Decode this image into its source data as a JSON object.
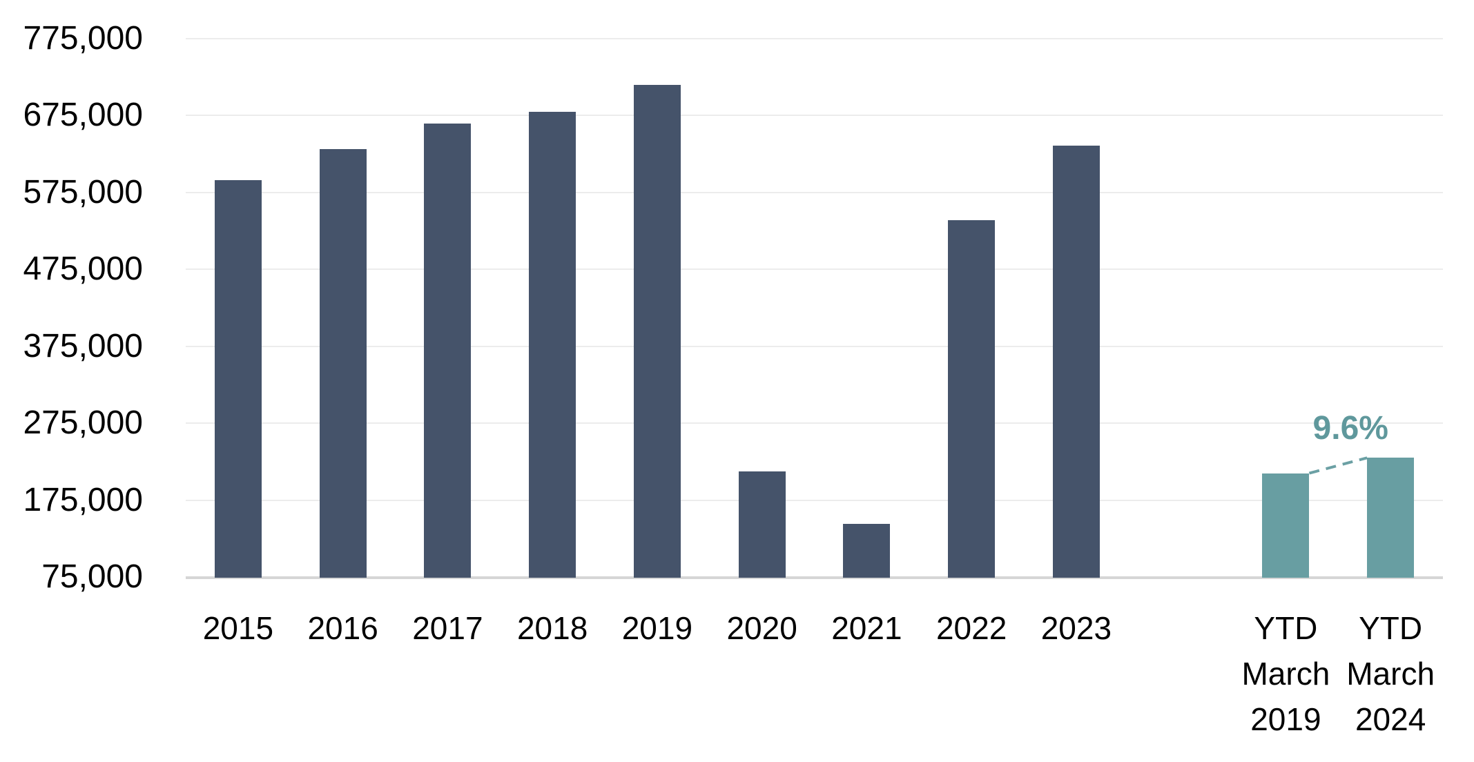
{
  "chart_data": {
    "type": "bar",
    "title": "",
    "xlabel": "",
    "ylabel": "",
    "categories": [
      "2015",
      "2016",
      "2017",
      "2018",
      "2019",
      "2020",
      "2021",
      "2022",
      "2023",
      "YTD March 2019",
      "YTD March 2024"
    ],
    "values": [
      591000,
      631000,
      665000,
      680000,
      715000,
      212000,
      144000,
      539000,
      636000,
      210000,
      230000
    ],
    "x_label_lines": [
      [
        "2015"
      ],
      [
        "2016"
      ],
      [
        "2017"
      ],
      [
        "2018"
      ],
      [
        "2019"
      ],
      [
        "2020"
      ],
      [
        "2021"
      ],
      [
        "2022"
      ],
      [
        "2023"
      ],
      [
        "YTD",
        "March",
        "2019"
      ],
      [
        "YTD",
        "March",
        "2024"
      ]
    ],
    "bar_color_keys": [
      "navy",
      "navy",
      "navy",
      "navy",
      "navy",
      "navy",
      "navy",
      "navy",
      "navy",
      "teal",
      "teal"
    ],
    "gap_after_index": 8,
    "ylim": [
      75000,
      775000
    ],
    "y_ticks": [
      {
        "value": 775000,
        "label": "775,000"
      },
      {
        "value": 675000,
        "label": "675,000"
      },
      {
        "value": 575000,
        "label": "575,000"
      },
      {
        "value": 475000,
        "label": "475,000"
      },
      {
        "value": 375000,
        "label": "375,000"
      },
      {
        "value": 275000,
        "label": "275,000"
      },
      {
        "value": 175000,
        "label": "175,000"
      },
      {
        "value": 75000,
        "label": "75,000"
      }
    ],
    "grid": true,
    "legend": "none",
    "annotation": {
      "text": "9.6%",
      "from_category": "YTD March 2019",
      "to_category": "YTD March 2024",
      "style": "dashed-connector"
    }
  },
  "colors": {
    "navy": "#45536A",
    "teal": "#689EA2",
    "annotation_text": "#5F989C",
    "connector": "#6BA0A4",
    "gridline": "#ECECEC",
    "baseline": "#D6D6D6",
    "axis_text": "#000000",
    "background": "#FFFFFF"
  }
}
